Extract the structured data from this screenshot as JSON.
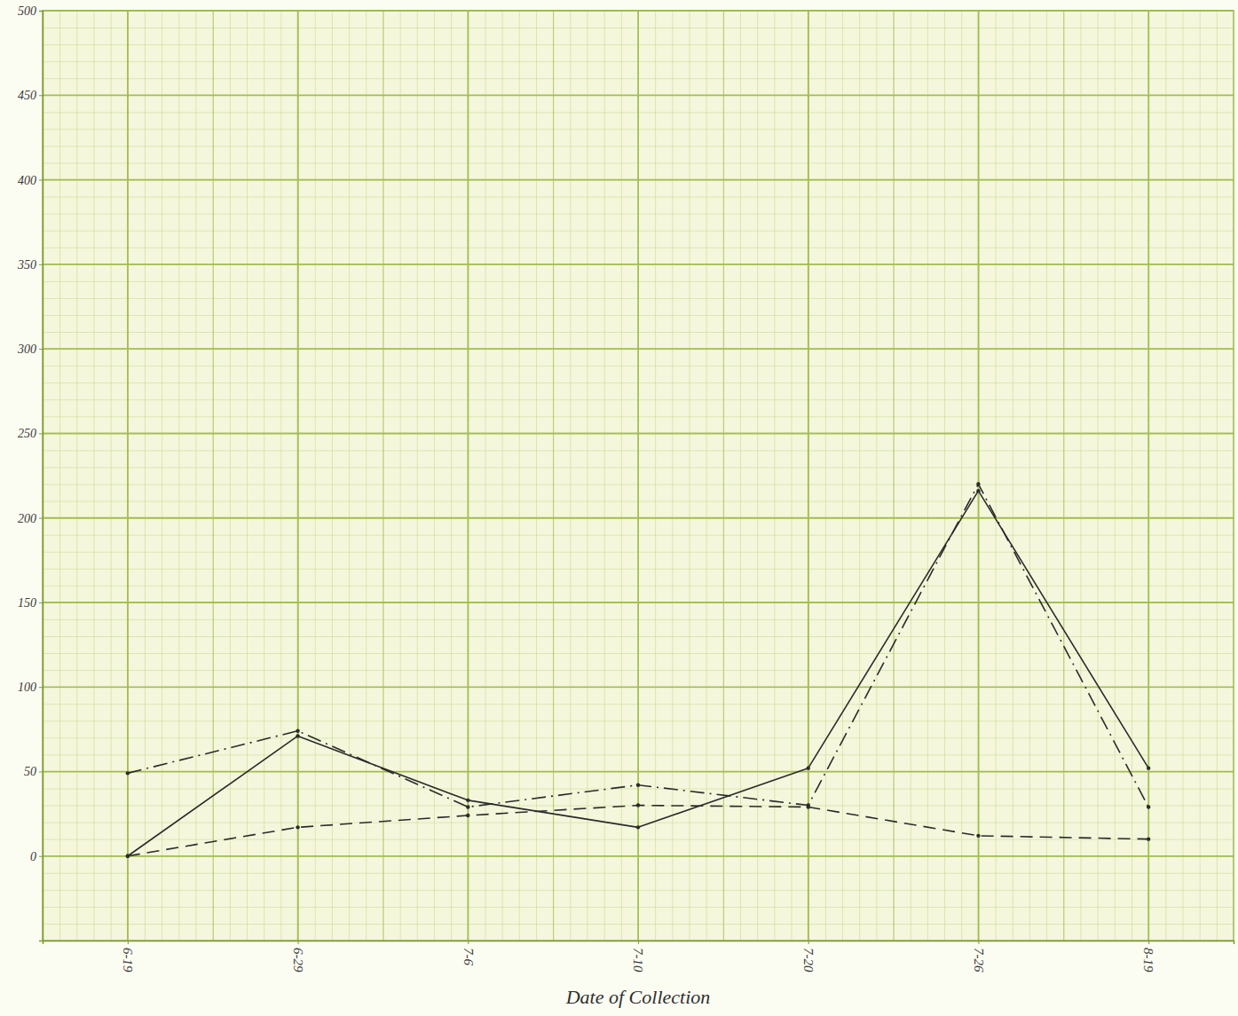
{
  "chart_data": {
    "type": "line",
    "x_label": "Date of Collection",
    "categories": [
      "6-19",
      "6-29",
      "7-6",
      "7-10",
      "7-20",
      "7-26",
      "8-19"
    ],
    "series": [
      {
        "values": [
          0,
          71,
          33,
          17,
          52,
          216,
          52
        ],
        "color": "#2b2b2b",
        "line_style": "solid"
      },
      {
        "values": [
          49,
          74,
          29,
          42,
          30,
          220,
          29
        ],
        "color": "#2b2b2b",
        "line_style": "dashdot"
      },
      {
        "values": [
          0,
          17,
          24,
          30,
          29,
          12,
          10
        ],
        "color": "#2b2b2b",
        "line_style": "dashed"
      }
    ],
    "ylim": [
      -50,
      500
    ],
    "yticks": [
      0,
      50,
      100,
      150,
      200,
      250,
      300,
      350,
      400,
      450,
      500
    ],
    "grid": true,
    "marker": "dot"
  }
}
